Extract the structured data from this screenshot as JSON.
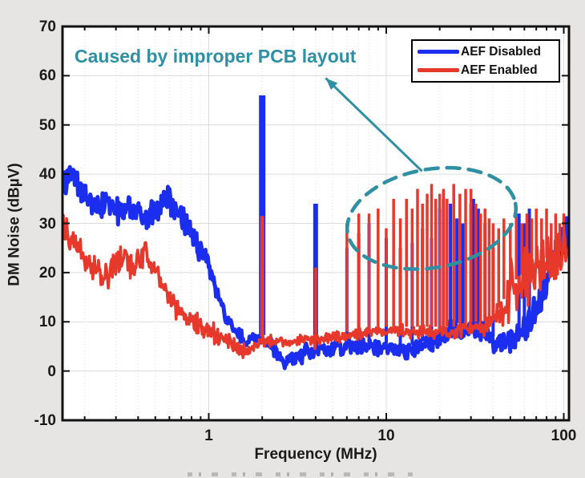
{
  "figure": {
    "bg_color": "#e6e5e3",
    "plot_bg": "#ffffff",
    "axis_color": "#111111",
    "grid_major_color": "#dcdcdc",
    "grid_minor_color": "#e3e3e3"
  },
  "chart_data": {
    "type": "line",
    "title": "",
    "xlabel": "Frequency (MHz)",
    "ylabel": "DM Noise (dBµV)",
    "x_scale": "log",
    "xlim": [
      0.15,
      107
    ],
    "ylim": [
      -10,
      70
    ],
    "x_ticks": [
      1,
      10,
      100
    ],
    "x_tick_labels": [
      "1",
      "10",
      "100"
    ],
    "y_ticks": [
      70,
      60,
      50,
      40,
      30,
      20,
      10,
      0,
      -10
    ],
    "y_tick_labels": [
      "70",
      "60",
      "50",
      "40",
      "30",
      "20",
      "10",
      "0",
      "-10"
    ],
    "grid": true,
    "legend_position": "top-right",
    "annotation": {
      "text": "Caused by improper PCB layout",
      "color": "#2f8fa3",
      "arrow": {
        "from_mhz": 15.9,
        "from_db": 40.6,
        "to_mhz": 4.56,
        "to_db": 59.5
      },
      "ellipse": {
        "cx_mhz": 18.0,
        "cy_db": 31,
        "rx_decades": 0.48,
        "ry_db": 10,
        "rotate_deg": -10
      }
    },
    "series": [
      {
        "name": "AEF Disabled",
        "color": "#1b2ef0",
        "line_width": 5,
        "spike_width": 4,
        "seed": 3,
        "envelope": [
          [
            0.15,
            38
          ],
          [
            0.17,
            40
          ],
          [
            0.2,
            35
          ],
          [
            0.24,
            33
          ],
          [
            0.28,
            34
          ],
          [
            0.33,
            32
          ],
          [
            0.38,
            33
          ],
          [
            0.45,
            31
          ],
          [
            0.52,
            33
          ],
          [
            0.6,
            35
          ],
          [
            0.68,
            32
          ],
          [
            0.78,
            29
          ],
          [
            0.88,
            25
          ],
          [
            1.0,
            21
          ],
          [
            1.1,
            16
          ],
          [
            1.25,
            11
          ],
          [
            1.4,
            8
          ],
          [
            1.6,
            6
          ],
          [
            1.8,
            7
          ],
          [
            2.1,
            6
          ],
          [
            2.4,
            4
          ],
          [
            2.8,
            1.5
          ],
          [
            3.2,
            3
          ],
          [
            3.6,
            4
          ],
          [
            4.5,
            4
          ],
          [
            6,
            5
          ],
          [
            8,
            5
          ],
          [
            10,
            4.5
          ],
          [
            13,
            4
          ],
          [
            16,
            5
          ],
          [
            20,
            7
          ],
          [
            24,
            9
          ],
          [
            28,
            8
          ],
          [
            32,
            9
          ],
          [
            36,
            8
          ],
          [
            40,
            6
          ],
          [
            45,
            6
          ],
          [
            55,
            7
          ],
          [
            65,
            10
          ],
          [
            75,
            15
          ],
          [
            85,
            21
          ],
          [
            95,
            26
          ],
          [
            107,
            28
          ]
        ],
        "noise_amp": [
          [
            0.15,
            3.5
          ],
          [
            1,
            3
          ],
          [
            1.6,
            1.5
          ],
          [
            3,
            2
          ],
          [
            10,
            1.8
          ],
          [
            20,
            2.5
          ],
          [
            40,
            2.5
          ],
          [
            60,
            3.5
          ],
          [
            107,
            4.5
          ]
        ],
        "spikes": [
          [
            2,
            56,
            8
          ],
          [
            4,
            34,
            6
          ],
          [
            6,
            25
          ],
          [
            7,
            28
          ],
          [
            8,
            30
          ],
          [
            10,
            27
          ],
          [
            12,
            25
          ],
          [
            14,
            26
          ],
          [
            16,
            29
          ],
          [
            18,
            27
          ],
          [
            20,
            33
          ],
          [
            21,
            35
          ],
          [
            23,
            34
          ],
          [
            25,
            31
          ],
          [
            27,
            30
          ],
          [
            30,
            34
          ],
          [
            31,
            35
          ],
          [
            33,
            33
          ],
          [
            36,
            30
          ],
          [
            40,
            25
          ],
          [
            56,
            32
          ],
          [
            60,
            30
          ],
          [
            64,
            33
          ]
        ]
      },
      {
        "name": "AEF Enabled",
        "color": "#e6392b",
        "line_width": 3.5,
        "spike_width": 3.5,
        "seed": 11,
        "envelope": [
          [
            0.15,
            29
          ],
          [
            0.18,
            25
          ],
          [
            0.22,
            21
          ],
          [
            0.27,
            19
          ],
          [
            0.32,
            23
          ],
          [
            0.38,
            21
          ],
          [
            0.45,
            24
          ],
          [
            0.55,
            17
          ],
          [
            0.65,
            13
          ],
          [
            0.8,
            10
          ],
          [
            1.0,
            8
          ],
          [
            1.3,
            6
          ],
          [
            1.6,
            4
          ],
          [
            2.0,
            6
          ],
          [
            2.5,
            6
          ],
          [
            3,
            6
          ],
          [
            4,
            6
          ],
          [
            5,
            7
          ],
          [
            6,
            7
          ],
          [
            8,
            8
          ],
          [
            10,
            8
          ],
          [
            13,
            8
          ],
          [
            16,
            8
          ],
          [
            20,
            8
          ],
          [
            25,
            8
          ],
          [
            30,
            9
          ],
          [
            35,
            9
          ],
          [
            40,
            10
          ],
          [
            45,
            13
          ],
          [
            50,
            16
          ],
          [
            55,
            18
          ],
          [
            60,
            19
          ],
          [
            65,
            20
          ],
          [
            70,
            21
          ],
          [
            78,
            22
          ],
          [
            85,
            22
          ],
          [
            92,
            23
          ],
          [
            100,
            24
          ],
          [
            107,
            24
          ]
        ],
        "noise_amp": [
          [
            0.15,
            3.5
          ],
          [
            1,
            2.5
          ],
          [
            2,
            1.5
          ],
          [
            10,
            1.5
          ],
          [
            30,
            1.8
          ],
          [
            42,
            3
          ],
          [
            50,
            7
          ],
          [
            107,
            7
          ]
        ],
        "spikes": [
          [
            2,
            31.5,
            5
          ],
          [
            4,
            21
          ],
          [
            6,
            30
          ],
          [
            7,
            32
          ],
          [
            8,
            32
          ],
          [
            9,
            33
          ],
          [
            10,
            29
          ],
          [
            11,
            35
          ],
          [
            12,
            31
          ],
          [
            13,
            35
          ],
          [
            14,
            33
          ],
          [
            15,
            37
          ],
          [
            16,
            34
          ],
          [
            17,
            36
          ],
          [
            18,
            38
          ],
          [
            19,
            35
          ],
          [
            20,
            36
          ],
          [
            21,
            37
          ],
          [
            22,
            35
          ],
          [
            24,
            38
          ],
          [
            26,
            36
          ],
          [
            28,
            37
          ],
          [
            30,
            37
          ],
          [
            32,
            34
          ],
          [
            34,
            32
          ],
          [
            36,
            33
          ],
          [
            38,
            31
          ],
          [
            40,
            30
          ],
          [
            43,
            29
          ],
          [
            46,
            31
          ],
          [
            50,
            30
          ],
          [
            54,
            32
          ],
          [
            58,
            30
          ],
          [
            62,
            32
          ],
          [
            66,
            31
          ],
          [
            70,
            33
          ],
          [
            75,
            31
          ],
          [
            80,
            33
          ],
          [
            85,
            30
          ],
          [
            90,
            32
          ],
          [
            95,
            30
          ],
          [
            100,
            32
          ]
        ]
      }
    ]
  },
  "legend": {
    "border_color": "#000000",
    "bg_color": "#ffffff"
  }
}
